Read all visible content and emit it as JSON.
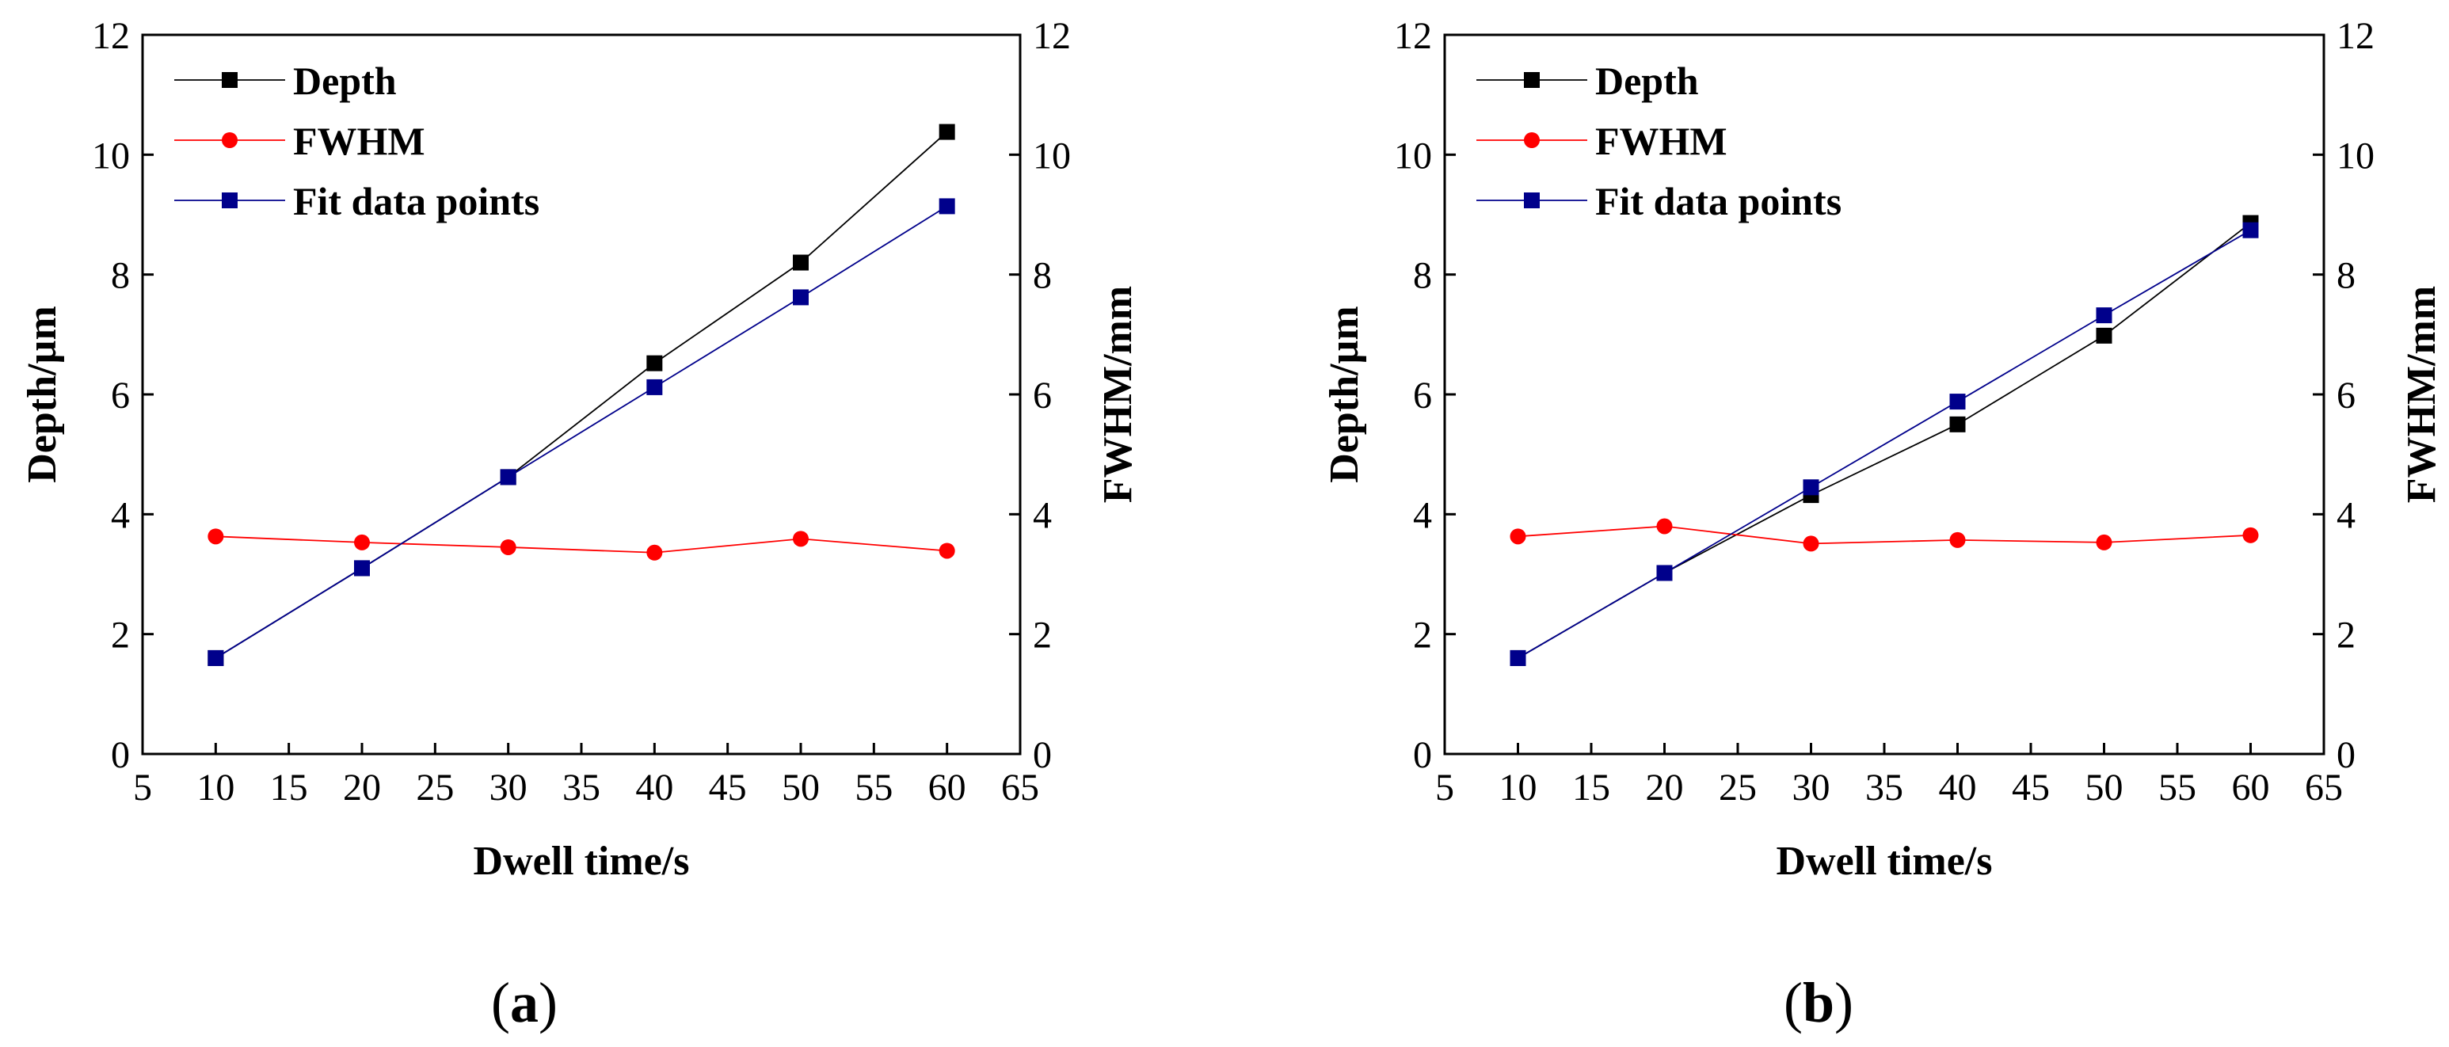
{
  "chart_data": [
    {
      "type": "line",
      "panel_label": "a",
      "xlabel": "Dwell time/s",
      "ylabel": "Depth/µm",
      "y2label": "FWHM/mm",
      "xlim": [
        5,
        65
      ],
      "ylim": [
        0,
        12
      ],
      "y2lim": [
        0,
        12
      ],
      "x_ticks": [
        5,
        10,
        15,
        20,
        25,
        30,
        35,
        40,
        45,
        50,
        55,
        60,
        65
      ],
      "y_ticks": [
        0,
        2,
        4,
        6,
        8,
        10,
        12
      ],
      "legend_position": "top-left",
      "series": [
        {
          "name": "Depth",
          "color": "#000000",
          "marker": "square",
          "axis": "left",
          "x": [
            10,
            20,
            30,
            40,
            50,
            60
          ],
          "y": [
            1.6,
            3.1,
            4.62,
            6.52,
            8.2,
            10.38
          ]
        },
        {
          "name": "FWHM",
          "color": "#ff0000",
          "marker": "circle",
          "axis": "right",
          "x": [
            10,
            20,
            30,
            40,
            50,
            60
          ],
          "y": [
            3.63,
            3.53,
            3.45,
            3.36,
            3.59,
            3.39
          ]
        },
        {
          "name": "Fit data points",
          "color": "#00008b",
          "marker": "square",
          "axis": "left",
          "x": [
            10,
            20,
            30,
            40,
            50,
            60
          ],
          "y": [
            1.6,
            3.1,
            4.62,
            6.12,
            7.62,
            9.14
          ]
        }
      ]
    },
    {
      "type": "line",
      "panel_label": "b",
      "xlabel": "Dwell time/s",
      "ylabel": "Depth/µm",
      "y2label": "FWHM/mm",
      "xlim": [
        5,
        65
      ],
      "ylim": [
        0,
        12
      ],
      "y2lim": [
        0,
        12
      ],
      "x_ticks": [
        5,
        10,
        15,
        20,
        25,
        30,
        35,
        40,
        45,
        50,
        55,
        60,
        65
      ],
      "y_ticks": [
        0,
        2,
        4,
        6,
        8,
        10,
        12
      ],
      "legend_position": "top-left",
      "series": [
        {
          "name": "Depth",
          "color": "#000000",
          "marker": "square",
          "axis": "left",
          "x": [
            10,
            20,
            30,
            40,
            50,
            60
          ],
          "y": [
            1.6,
            3.02,
            4.32,
            5.5,
            6.98,
            8.86
          ]
        },
        {
          "name": "FWHM",
          "color": "#ff0000",
          "marker": "circle",
          "axis": "right",
          "x": [
            10,
            20,
            30,
            40,
            50,
            60
          ],
          "y": [
            3.63,
            3.8,
            3.51,
            3.57,
            3.53,
            3.65
          ]
        },
        {
          "name": "Fit data points",
          "color": "#00008b",
          "marker": "square",
          "axis": "left",
          "x": [
            10,
            20,
            30,
            40,
            50,
            60
          ],
          "y": [
            1.6,
            3.02,
            4.45,
            5.88,
            7.32,
            8.74
          ]
        }
      ]
    }
  ]
}
